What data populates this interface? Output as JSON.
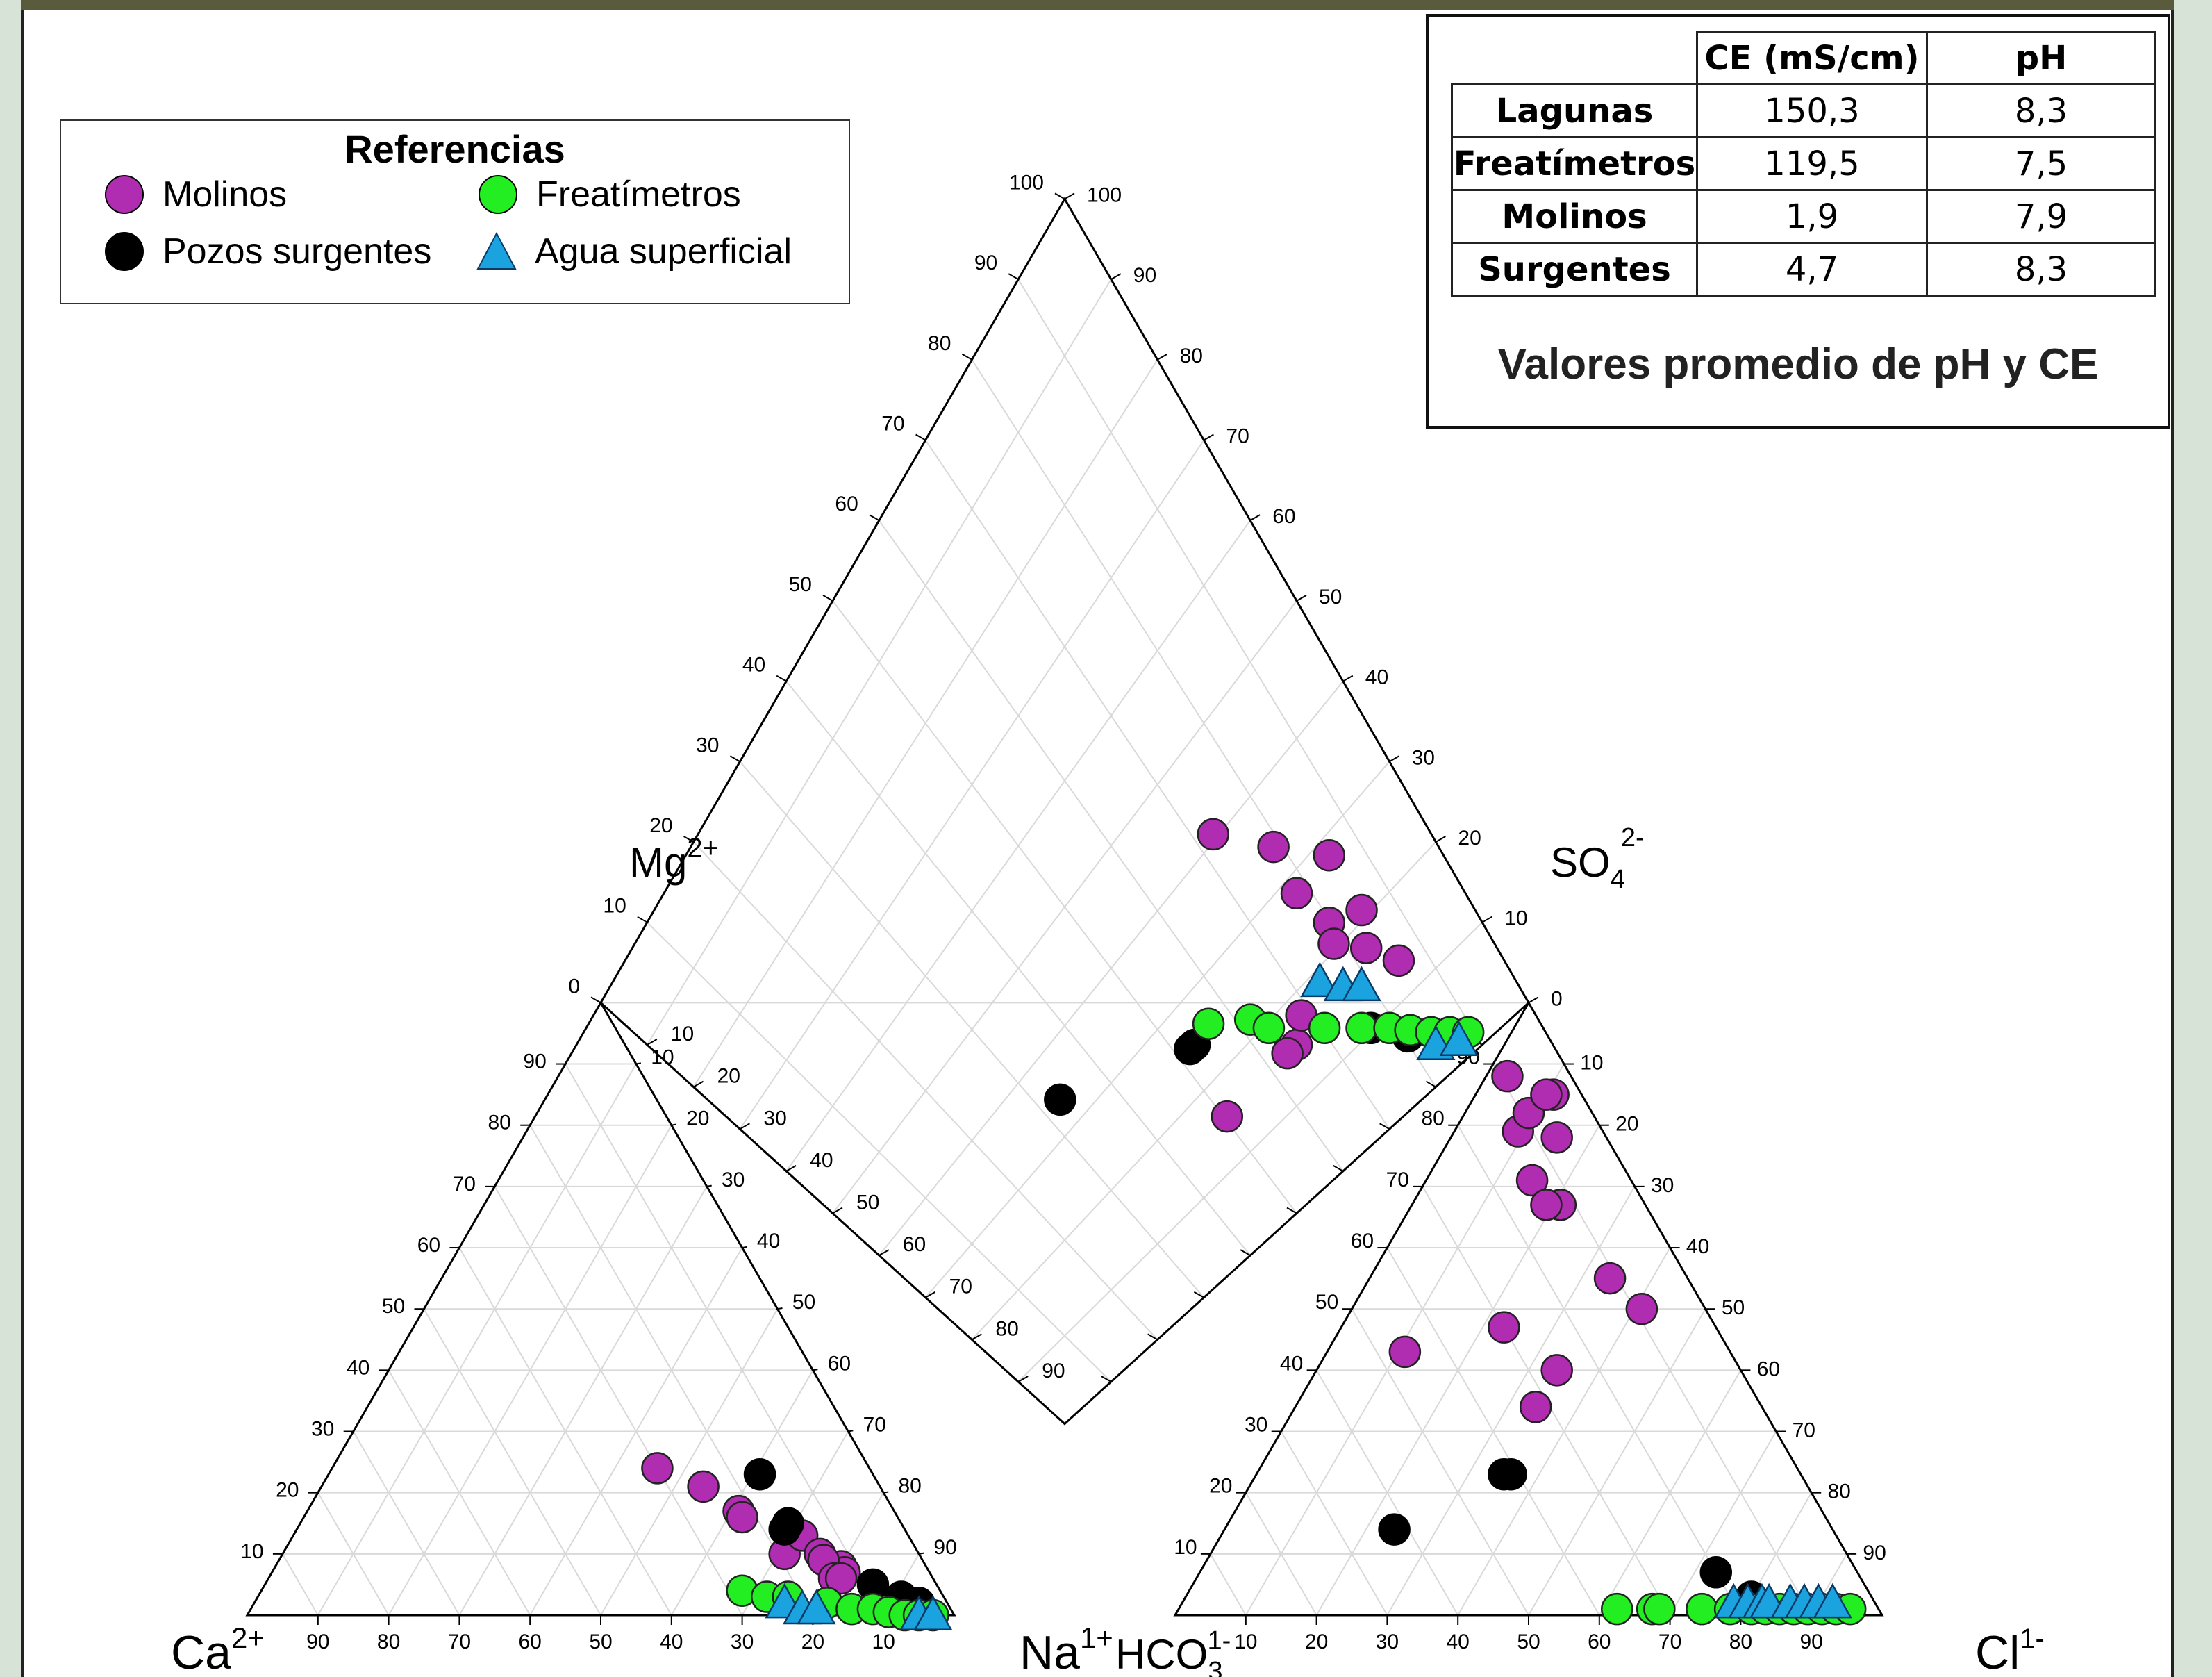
{
  "legend": {
    "title": "Referencias",
    "items": [
      {
        "label": "Molinos",
        "shape": "circle",
        "color": "#b02cb0"
      },
      {
        "label": "Freatímetros",
        "shape": "circle",
        "color": "#22ee22"
      },
      {
        "label": "Pozos surgentes",
        "shape": "circle",
        "color": "#000000"
      },
      {
        "label": "Agua superficial",
        "shape": "triangle",
        "color": "#1ba3e0"
      }
    ]
  },
  "table": {
    "headers": [
      "",
      "CE (mS/cm)",
      "pH"
    ],
    "rows": [
      [
        "Lagunas",
        "150,3",
        "8,3"
      ],
      [
        "Freatímetros",
        "119,5",
        "7,5"
      ],
      [
        "Molinos",
        "1,9",
        "7,9"
      ],
      [
        "Surgentes",
        "4,7",
        "8,3"
      ]
    ],
    "caption": "Valores promedio de pH y CE"
  },
  "chart_data": {
    "type": "scatter",
    "subtype": "piper-trilinear",
    "grid": true,
    "axis_labels": {
      "mg": {
        "base": "Mg",
        "sup": "2+"
      },
      "ca": {
        "base": "Ca",
        "sup": "2+"
      },
      "na": {
        "base": "Na",
        "sup": "1+"
      },
      "hco3": {
        "base": "HCO",
        "sub": "3",
        "sup": "1-"
      },
      "so4": {
        "base": "SO",
        "sub": "4",
        "sup": "2-"
      },
      "cl": {
        "base": "Cl",
        "sup": "1-"
      }
    },
    "ticks": {
      "cation_bottom": [
        "90",
        "80",
        "70",
        "60",
        "50",
        "40",
        "30",
        "20",
        "10"
      ],
      "cation_left": [
        "10",
        "20",
        "30",
        "40",
        "50",
        "60",
        "70",
        "80",
        "90"
      ],
      "cation_right": [
        "10",
        "20",
        "30",
        "40",
        "50",
        "60",
        "70",
        "80",
        "90"
      ],
      "anion_bottom": [
        "10",
        "20",
        "30",
        "40",
        "50",
        "60",
        "70",
        "80",
        "90"
      ],
      "anion_left": [
        "10",
        "20",
        "30",
        "40",
        "50",
        "60",
        "70",
        "80",
        "90"
      ],
      "anion_right": [
        "10",
        "20",
        "30",
        "40",
        "50",
        "60",
        "70",
        "80",
        "90"
      ],
      "diamond_upper_left": [
        "0",
        "10",
        "20",
        "30",
        "40",
        "50",
        "60",
        "70",
        "80",
        "90",
        "100"
      ],
      "diamond_upper_right": [
        "100",
        "90",
        "80",
        "70",
        "60",
        "50",
        "40",
        "30",
        "20",
        "10",
        "0"
      ],
      "diamond_lower_left": [
        "10",
        "20",
        "30",
        "40",
        "50",
        "60",
        "70",
        "80",
        "90"
      ]
    },
    "series": [
      {
        "name": "Molinos",
        "cations": [
          [
            24,
            30,
            46
          ],
          [
            21,
            25,
            54
          ],
          [
            17,
            22,
            61
          ],
          [
            16,
            22,
            62
          ],
          [
            10,
            19,
            71
          ],
          [
            15,
            16,
            69
          ],
          [
            13,
            15,
            72
          ],
          [
            10,
            14,
            76
          ],
          [
            8,
            12,
            80
          ],
          [
            7,
            12,
            81
          ],
          [
            9,
            14,
            77
          ],
          [
            6,
            14,
            80
          ],
          [
            6,
            13,
            81
          ]
        ],
        "anions": [
          [
            71,
            14,
            15
          ],
          [
            50,
            9,
            41
          ],
          [
            85,
            4,
            11
          ],
          [
            79,
            12,
            9
          ],
          [
            78,
            7,
            15
          ],
          [
            67,
            12,
            21
          ],
          [
            67,
            14,
            19
          ],
          [
            55,
            11,
            34
          ],
          [
            47,
            30,
            23
          ],
          [
            43,
            46,
            11
          ],
          [
            40,
            26,
            34
          ],
          [
            34,
            32,
            34
          ],
          [
            88,
            9,
            3
          ],
          [
            82,
            9,
            9
          ],
          [
            85,
            5,
            10
          ]
        ]
      },
      {
        "name": "Pozos surgentes",
        "cations": [
          [
            23,
            16,
            61
          ],
          [
            15,
            16,
            69
          ],
          [
            14,
            17,
            69
          ],
          [
            5,
            9,
            86
          ],
          [
            3,
            6,
            91
          ],
          [
            2,
            4,
            94
          ]
        ],
        "anions": [
          [
            14,
            62,
            24
          ],
          [
            23,
            42,
            35
          ],
          [
            23,
            41,
            36
          ],
          [
            7,
            20,
            73
          ],
          [
            3,
            17,
            80
          ]
        ]
      },
      {
        "name": "Freatímetros",
        "cations": [
          [
            4,
            28,
            68
          ],
          [
            3,
            25,
            72
          ],
          [
            3,
            22,
            75
          ],
          [
            2,
            17,
            81
          ],
          [
            1,
            14,
            85
          ],
          [
            1,
            11,
            88
          ],
          [
            0.5,
            9,
            90.5
          ],
          [
            0,
            7,
            93
          ],
          [
            0,
            5,
            95
          ],
          [
            0,
            3,
            97
          ]
        ],
        "anions": [
          [
            1,
            37,
            62
          ],
          [
            1,
            32,
            67
          ],
          [
            1,
            31,
            68
          ],
          [
            1,
            25,
            74
          ],
          [
            1,
            21,
            78
          ],
          [
            1,
            18,
            81
          ],
          [
            1,
            16,
            83
          ],
          [
            1,
            14,
            85
          ],
          [
            1,
            12,
            87
          ],
          [
            1,
            10,
            89
          ],
          [
            1,
            8,
            91
          ],
          [
            1,
            6,
            93
          ],
          [
            1,
            4,
            95
          ]
        ]
      },
      {
        "name": "Agua superficial",
        "cations": [
          [
            2,
            23,
            75
          ],
          [
            1,
            21,
            78
          ],
          [
            1,
            19,
            80
          ],
          [
            0,
            5,
            95
          ],
          [
            0,
            3,
            97
          ]
        ],
        "anions": [
          [
            2,
            20,
            78
          ],
          [
            2,
            18,
            80
          ],
          [
            2,
            16,
            82
          ],
          [
            2,
            15,
            83
          ],
          [
            2,
            12,
            86
          ],
          [
            2,
            10,
            88
          ],
          [
            2,
            8,
            90
          ],
          [
            2,
            6,
            92
          ]
        ]
      }
    ]
  }
}
